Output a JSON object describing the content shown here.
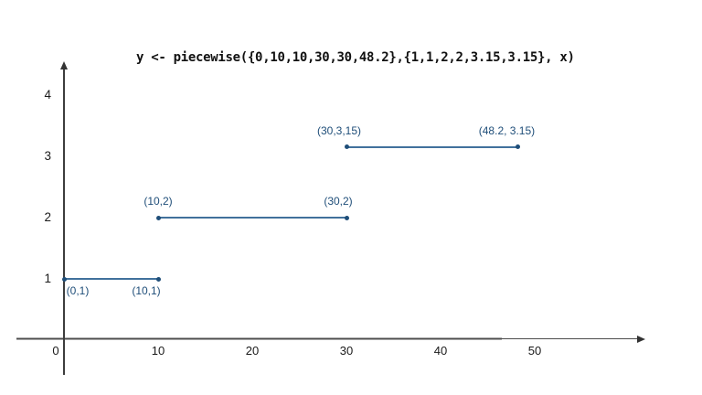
{
  "chart_data": {
    "type": "line",
    "title": "y <- piecewise({0,10,10,30,30,48.2},{1,1,2,2,3.15,3.15}, x)",
    "xlabel": "",
    "ylabel": "",
    "x_ticks": [
      0,
      10,
      20,
      30,
      40,
      50
    ],
    "y_ticks": [
      1,
      2,
      3,
      4
    ],
    "xlim": [
      0,
      61
    ],
    "ylim": [
      0,
      4.4
    ],
    "grid": false,
    "legend_position": "none",
    "colors": {
      "segment_line": "#41719c",
      "data_point": "#1f4e79",
      "point_label": "#1f4e79",
      "axis": "#3d3d3d",
      "x_baseline": "#a8a8a8",
      "title_text": "#111111"
    },
    "segments": [
      {
        "points": [
          {
            "x": 0,
            "y": 1,
            "label": "(0,1)",
            "label_side": "below"
          },
          {
            "x": 10,
            "y": 1,
            "label": "(10,1)",
            "label_side": "below"
          }
        ]
      },
      {
        "points": [
          {
            "x": 10,
            "y": 2,
            "label": "(10,2)",
            "label_side": "above"
          },
          {
            "x": 30,
            "y": 2,
            "label": "(30,2)",
            "label_side": "above"
          }
        ]
      },
      {
        "points": [
          {
            "x": 30,
            "y": 3.15,
            "label": "(30,3,15)",
            "label_side": "above"
          },
          {
            "x": 48.2,
            "y": 3.15,
            "label": "(48.2, 3.15)",
            "label_side": "above"
          }
        ]
      }
    ]
  }
}
